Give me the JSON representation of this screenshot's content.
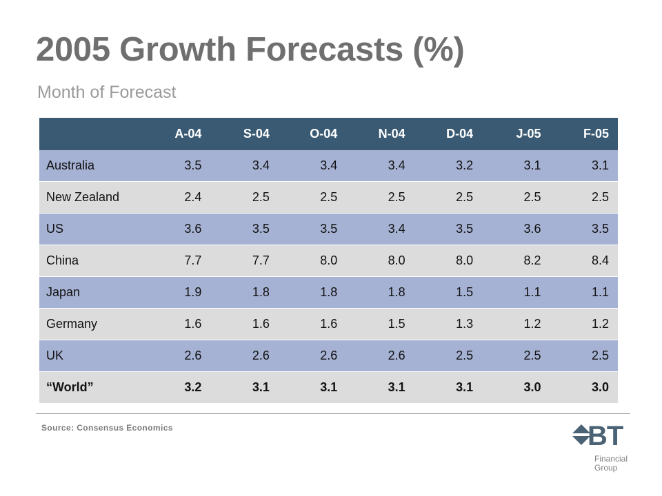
{
  "title": "2005 Growth Forecasts (%)",
  "subtitle": "Month of Forecast",
  "table": {
    "columns": [
      "A-04",
      "S-04",
      "O-04",
      "N-04",
      "D-04",
      "J-05",
      "F-05"
    ],
    "rows": [
      {
        "label": "Australia",
        "values": [
          "3.5",
          "3.4",
          "3.4",
          "3.4",
          "3.2",
          "3.1",
          "3.1"
        ]
      },
      {
        "label": "New Zealand",
        "values": [
          "2.4",
          "2.5",
          "2.5",
          "2.5",
          "2.5",
          "2.5",
          "2.5"
        ]
      },
      {
        "label": "US",
        "values": [
          "3.6",
          "3.5",
          "3.5",
          "3.4",
          "3.5",
          "3.6",
          "3.5"
        ]
      },
      {
        "label": "China",
        "values": [
          "7.7",
          "7.7",
          "8.0",
          "8.0",
          "8.0",
          "8.2",
          "8.4"
        ]
      },
      {
        "label": "Japan",
        "values": [
          "1.9",
          "1.8",
          "1.8",
          "1.8",
          "1.5",
          "1.1",
          "1.1"
        ]
      },
      {
        "label": "Germany",
        "values": [
          "1.6",
          "1.6",
          "1.6",
          "1.5",
          "1.3",
          "1.2",
          "1.2"
        ]
      },
      {
        "label": "UK",
        "values": [
          "2.6",
          "2.6",
          "2.6",
          "2.6",
          "2.5",
          "2.5",
          "2.5"
        ]
      },
      {
        "label": "“World”",
        "values": [
          "3.2",
          "3.1",
          "3.1",
          "3.1",
          "3.1",
          "3.0",
          "3.0"
        ]
      }
    ]
  },
  "source": "Source: Consensus Economics",
  "logo": {
    "brand": "BT",
    "line1": "Financial",
    "line2": "Group",
    "colors": {
      "mark": "#4a6274",
      "text": "#808080"
    }
  },
  "colors": {
    "header_bg": "#3a5a73",
    "row_blue": "#a6b2d4",
    "row_grey": "#dcdcdc",
    "title": "#6f6f6f",
    "subtitle": "#9a9a9a"
  }
}
